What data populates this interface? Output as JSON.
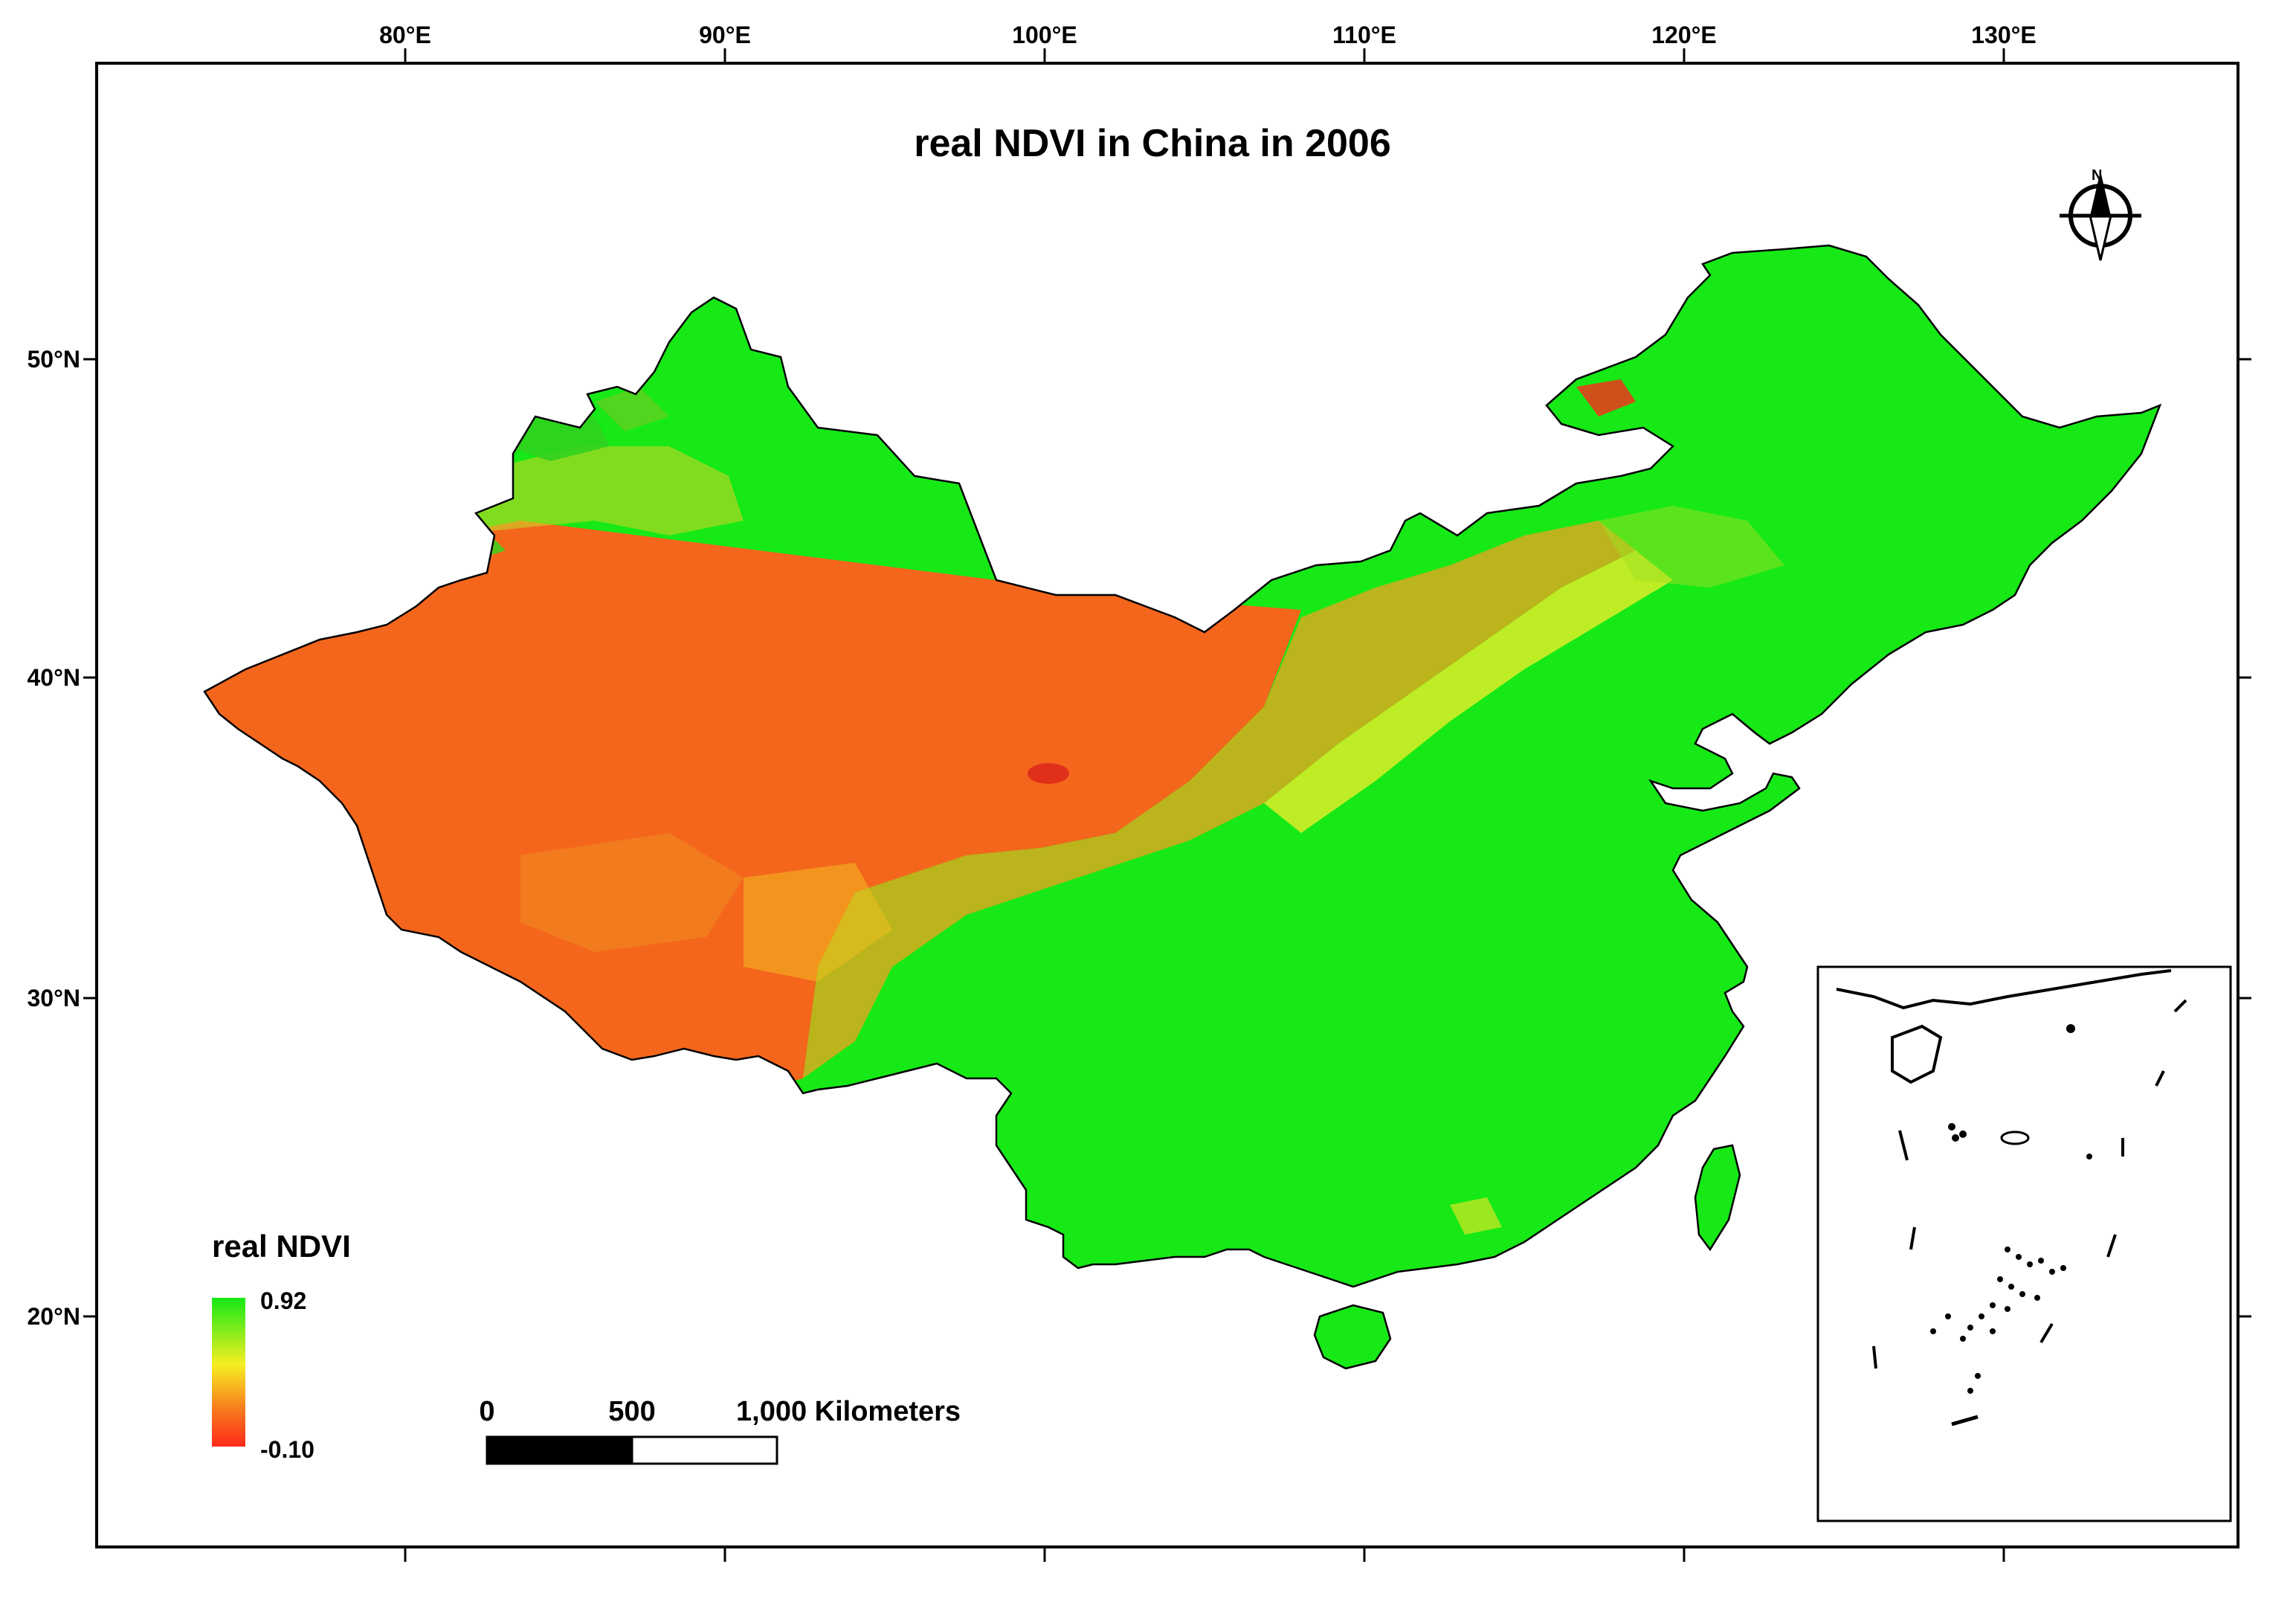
{
  "map": {
    "title": "real NDVI in China in 2006",
    "top_axis_labels": [
      "80°E",
      "90°E",
      "100°E",
      "110°E",
      "120°E",
      "130°E"
    ],
    "left_axis_labels": [
      "50°N",
      "40°N",
      "30°N",
      "20°N"
    ],
    "colors": {
      "high_ndvi": "#16e916",
      "mid_ndvi": "#f3f01c",
      "low_ndvi": "#f4661c",
      "frame": "#000000"
    },
    "north_arrow_icon": "north-arrow-icon",
    "north_arrow_label": "N"
  },
  "legend": {
    "title": "real NDVI",
    "max_label": "0.92",
    "min_label": "-0.10"
  },
  "scale_bar": {
    "labels": [
      "0",
      "500",
      "1,000 Kilometers"
    ]
  }
}
